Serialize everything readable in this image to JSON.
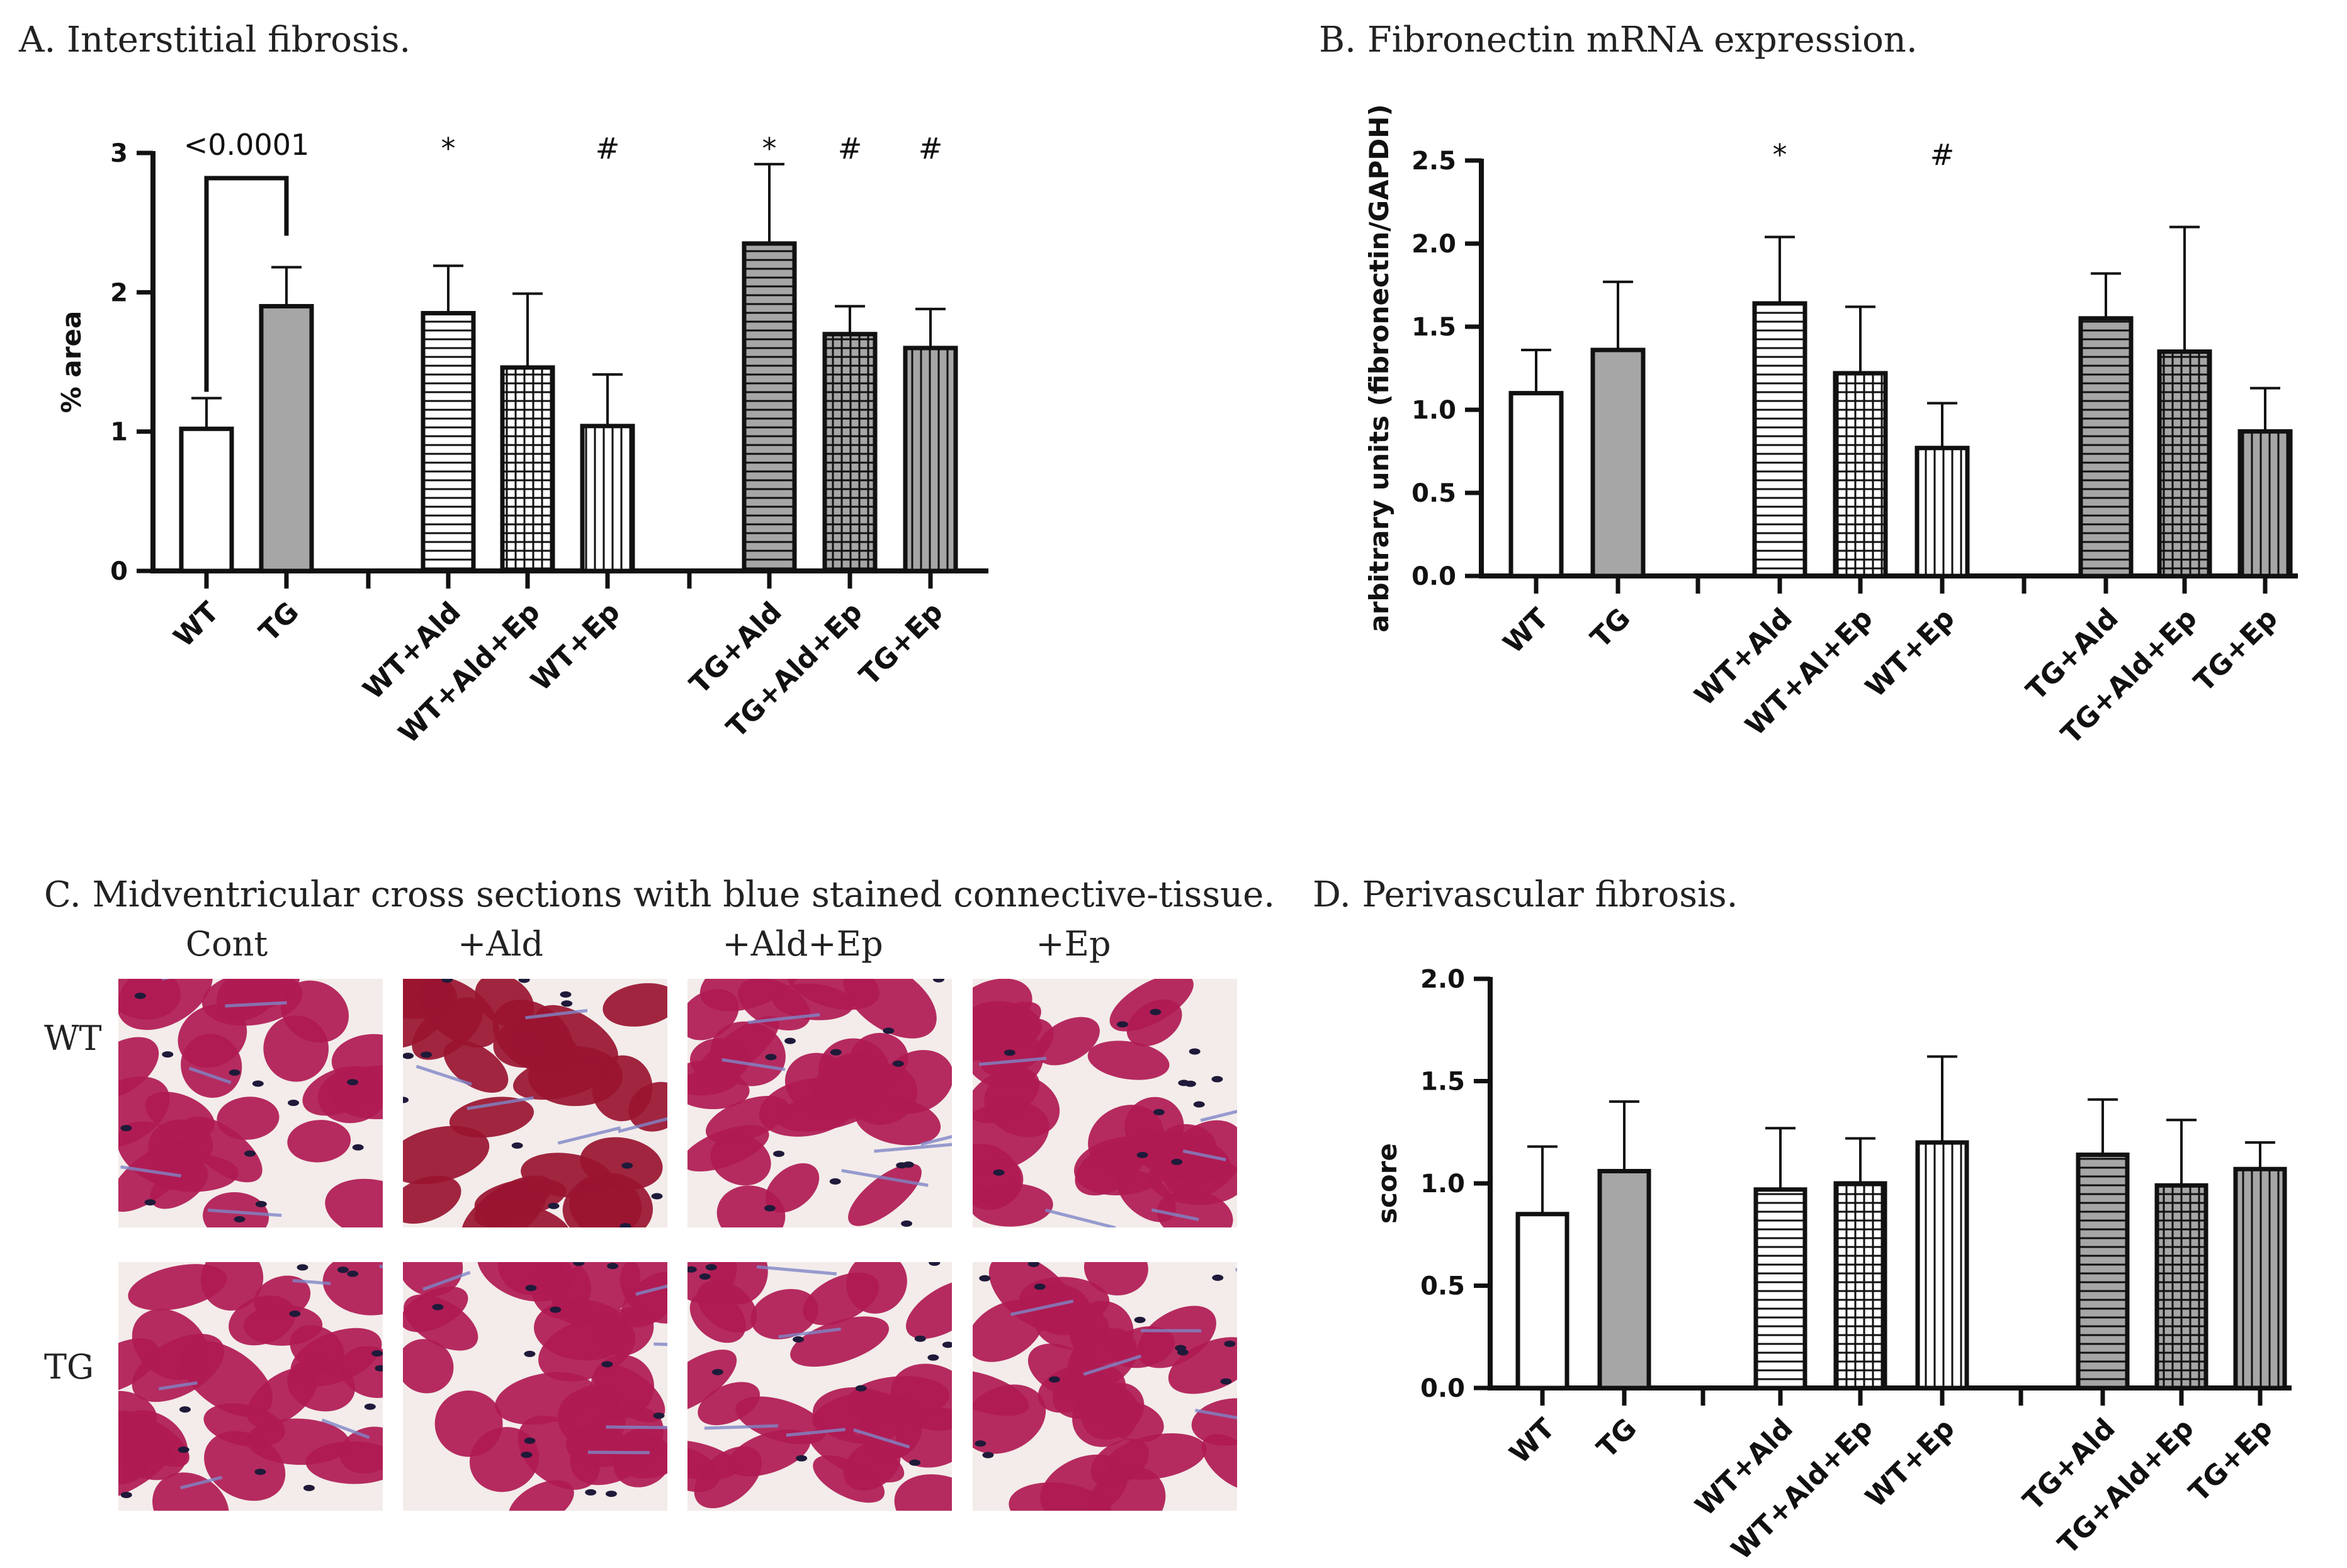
{
  "chart_data": [
    {
      "type": "bar",
      "title": "A. Interstitial fibrosis.",
      "ylabel": "% area",
      "ylim": [
        0,
        3
      ],
      "yticks": [
        "0",
        "1",
        "2",
        "3"
      ],
      "categories": [
        "WT",
        "TG",
        "WT+Ald",
        "WT+Ald+Ep",
        "WT+Ep",
        "TG+Ald",
        "TG+Ald+Ep",
        "TG+Ep"
      ],
      "values": [
        1.02,
        1.9,
        1.85,
        1.46,
        1.04,
        2.35,
        1.7,
        1.6
      ],
      "errors": [
        0.22,
        0.28,
        0.34,
        0.53,
        0.37,
        0.57,
        0.2,
        0.28
      ],
      "patterns": [
        "white",
        "gray",
        "hlines",
        "grid",
        "vlines",
        "gray-hlines",
        "gray-grid",
        "gray-vlines"
      ],
      "markers": [
        "",
        "",
        "*",
        "",
        "#",
        "*",
        "#",
        "#"
      ],
      "bracket": {
        "from": 0,
        "to": 1,
        "label": "<0.0001"
      }
    },
    {
      "type": "bar",
      "title": "B. Fibronectin mRNA expression.",
      "ylabel": "arbitrary units (fibronectin/GAPDH)",
      "ylim": [
        0,
        2.5
      ],
      "yticks": [
        "0.0",
        "0.5",
        "1.0",
        "1.5",
        "2.0",
        "2.5"
      ],
      "categories": [
        "WT",
        "TG",
        "WT+Ald",
        "WT+Al+Ep",
        "WT+Ep",
        "TG+Ald",
        "TG+Ald+Ep",
        "TG+Ep"
      ],
      "values": [
        1.1,
        1.36,
        1.64,
        1.22,
        0.77,
        1.55,
        1.35,
        0.87
      ],
      "errors": [
        0.26,
        0.41,
        0.4,
        0.4,
        0.27,
        0.27,
        0.75,
        0.26
      ],
      "patterns": [
        "white",
        "gray",
        "hlines",
        "grid",
        "vlines",
        "gray-hlines",
        "gray-grid",
        "gray-vlines"
      ],
      "markers": [
        "",
        "",
        "*",
        "",
        "#",
        "",
        "",
        ""
      ]
    },
    {
      "type": "bar",
      "title": "D. Perivascular fibrosis.",
      "ylabel": "score",
      "ylim": [
        0,
        2.0
      ],
      "yticks": [
        "0.0",
        "0.5",
        "1.0",
        "1.5",
        "2.0"
      ],
      "categories": [
        "WT",
        "TG",
        "WT+Ald",
        "WT+Ald+Ep",
        "WT+Ep",
        "TG+Ald",
        "TG+Ald+Ep",
        "TG+Ep"
      ],
      "values": [
        0.85,
        1.06,
        0.97,
        1.0,
        1.2,
        1.14,
        0.99,
        1.07
      ],
      "errors": [
        0.33,
        0.34,
        0.3,
        0.22,
        0.42,
        0.27,
        0.32,
        0.13
      ],
      "patterns": [
        "white",
        "gray",
        "hlines",
        "grid",
        "vlines",
        "gray-hlines",
        "gray-grid",
        "gray-vlines"
      ],
      "markers": [
        "",
        "",
        "",
        "",
        "",
        "",
        "",
        ""
      ]
    }
  ],
  "micrographs": {
    "title": "C. Midventricular cross sections with blue stained connective-tissue.",
    "columns": [
      "Cont",
      "+Ald",
      "+Ald+Ep",
      "+Ep"
    ],
    "rows": [
      "WT",
      "TG"
    ]
  },
  "colors": {
    "bar_gray": "#a6a6a6",
    "axis": "#111111",
    "tissue": "#b01a52",
    "tissue_dark": "#9a1330",
    "connective": "#7f86c8",
    "space": "#f3ecea"
  }
}
